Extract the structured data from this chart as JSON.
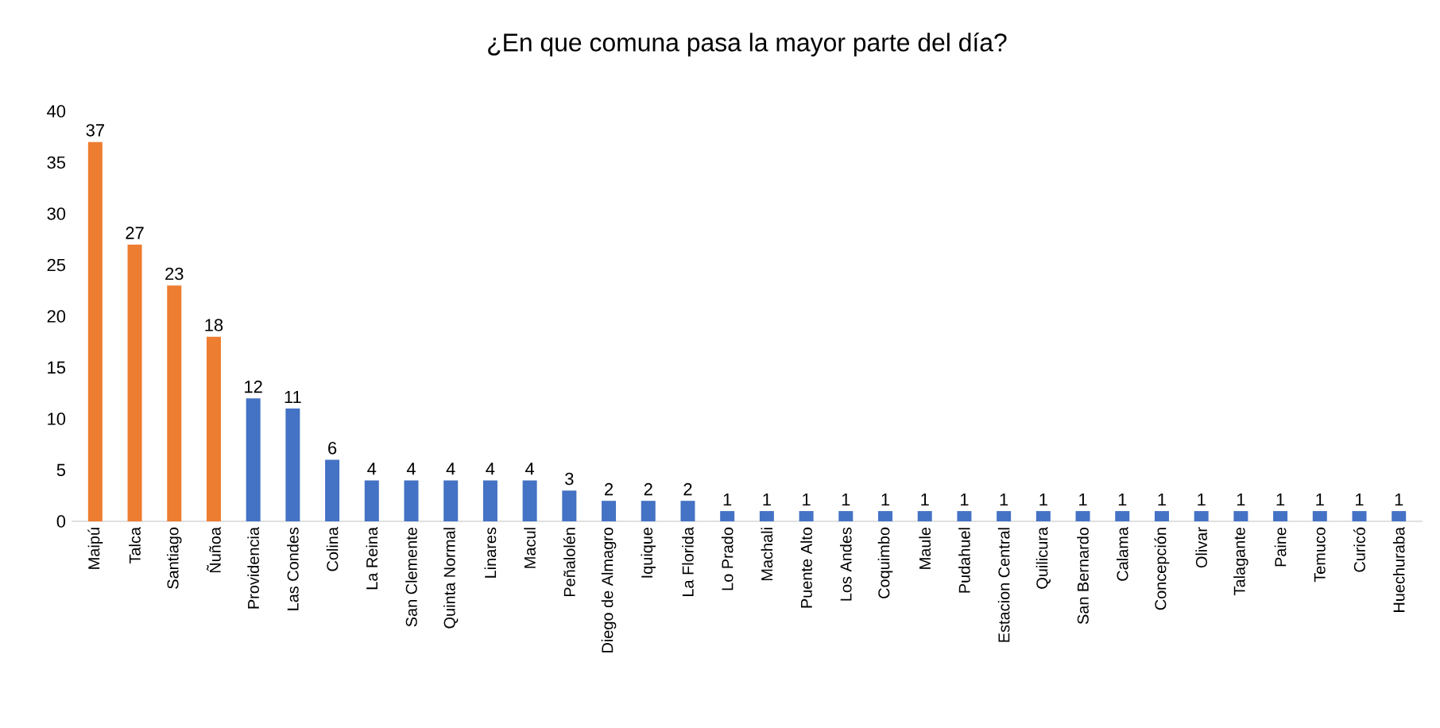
{
  "chart_data": {
    "type": "bar",
    "title": "¿En que comuna pasa la mayor parte del día?",
    "categories": [
      "Maipú",
      "Talca",
      "Santiago",
      "Ñuñoa",
      "Providencia",
      "Las Condes",
      "Colina",
      "La Reina",
      "San Clemente",
      "Quinta Normal",
      "Linares",
      "Macul",
      "Peñalolén",
      "Diego de Almagro",
      "Iquique",
      "La Florida",
      "Lo Prado",
      "Machali",
      "Puente Alto",
      "Los Andes",
      "Coquimbo",
      "Maule",
      "Pudahuel",
      "Estacion Central",
      "Quilicura",
      "San Bernardo",
      "Calama",
      "Concepción",
      "Olivar",
      "Talagante",
      "Paine",
      "Temuco",
      "Curicó",
      "Huechuraba"
    ],
    "values": [
      37,
      27,
      23,
      18,
      12,
      11,
      6,
      4,
      4,
      4,
      4,
      4,
      3,
      2,
      2,
      2,
      1,
      1,
      1,
      1,
      1,
      1,
      1,
      1,
      1,
      1,
      1,
      1,
      1,
      1,
      1,
      1,
      1,
      1
    ],
    "colors": [
      "#ed7d31",
      "#ed7d31",
      "#ed7d31",
      "#ed7d31",
      "#4472c4",
      "#4472c4",
      "#4472c4",
      "#4472c4",
      "#4472c4",
      "#4472c4",
      "#4472c4",
      "#4472c4",
      "#4472c4",
      "#4472c4",
      "#4472c4",
      "#4472c4",
      "#4472c4",
      "#4472c4",
      "#4472c4",
      "#4472c4",
      "#4472c4",
      "#4472c4",
      "#4472c4",
      "#4472c4",
      "#4472c4",
      "#4472c4",
      "#4472c4",
      "#4472c4",
      "#4472c4",
      "#4472c4",
      "#4472c4",
      "#4472c4",
      "#4472c4",
      "#4472c4"
    ],
    "ylim": [
      0,
      40
    ],
    "yticks": [
      0,
      5,
      10,
      15,
      20,
      25,
      30,
      35,
      40
    ],
    "data_labels": true
  }
}
